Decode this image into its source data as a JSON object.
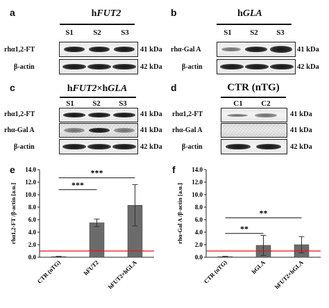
{
  "panels": {
    "a": {
      "letter": "a",
      "title_prefix": "h",
      "title_gene": "FUT2",
      "lanes": [
        "S1",
        "S2",
        "S3"
      ],
      "rows": [
        {
          "label": "rhα1,2-FT",
          "kda": "41 kDa"
        },
        {
          "label": "β-actin",
          "kda": "42 kDa"
        }
      ]
    },
    "b": {
      "letter": "b",
      "title_prefix": "h",
      "title_gene": "GLA",
      "lanes": [
        "S1",
        "S2",
        "S3"
      ],
      "rows": [
        {
          "label": "rhα-Gal A",
          "kda": "41 kDa"
        },
        {
          "label": "β-actin",
          "kda": "42 kDa"
        }
      ]
    },
    "c": {
      "letter": "c",
      "title_prefix": "h",
      "title_gene": "FUT2",
      "title_mid": "×h",
      "title_gene2": "GLA",
      "lanes": [
        "S1",
        "S2",
        "S3"
      ],
      "rows": [
        {
          "label": "rhα1,2-FT",
          "kda": "41 kDa"
        },
        {
          "label": "rhα-Gal A",
          "kda": "41 kDa"
        },
        {
          "label": "β-actin",
          "kda": "42 kDa"
        }
      ]
    },
    "d": {
      "letter": "d",
      "title": "CTR (nTG)",
      "lanes": [
        "C1",
        "C2"
      ],
      "rows": [
        {
          "label": "rhα1,2-FT",
          "kda": "41 kDa"
        },
        {
          "label": "rhα-Gal A",
          "kda": "41 kDa"
        },
        {
          "label": "β-actin",
          "kda": "42 kDa"
        }
      ]
    }
  },
  "chart_data": [
    {
      "panel": "e",
      "type": "bar",
      "ylabel": "rhα1,2-FT /β-actin [a.u.]",
      "categories": [
        "CTR (nTG)",
        "hFUT2",
        "hFUT2×hGLA"
      ],
      "values": [
        0.1,
        5.5,
        8.3
      ],
      "error": [
        0.05,
        0.6,
        3.3
      ],
      "ylim": [
        0,
        14
      ],
      "yticks": [
        "0.0",
        "2.0",
        "4.0",
        "6.0",
        "8.0",
        "10.0",
        "12.0",
        "14.0"
      ],
      "reference_line": 1.0,
      "reference_color": "#e0141e",
      "bar_color": "#6b6b6b",
      "significance": [
        {
          "from": 0,
          "to": 2,
          "y": 12.7,
          "label": "***"
        },
        {
          "from": 0,
          "to": 1,
          "y": 10.8,
          "label": "***"
        }
      ]
    },
    {
      "panel": "f",
      "type": "bar",
      "ylabel": "rhα-Gal A /β-actin [a.u.]",
      "categories": [
        "CTR (nTG)",
        "hGLA",
        "hFUT2×hGLA"
      ],
      "values": [
        0.1,
        1.9,
        2.0
      ],
      "error": [
        0.05,
        1.6,
        1.3
      ],
      "ylim": [
        0,
        14
      ],
      "yticks": [
        "0.0",
        "2.0",
        "4.0",
        "6.0",
        "8.0",
        "10.0",
        "12.0",
        "14.0"
      ],
      "reference_line": 1.0,
      "reference_color": "#e0141e",
      "bar_color": "#6b6b6b",
      "significance": [
        {
          "from": 0,
          "to": 2,
          "y": 6.3,
          "label": "**"
        },
        {
          "from": 0,
          "to": 1,
          "y": 3.8,
          "label": "**"
        }
      ]
    }
  ]
}
